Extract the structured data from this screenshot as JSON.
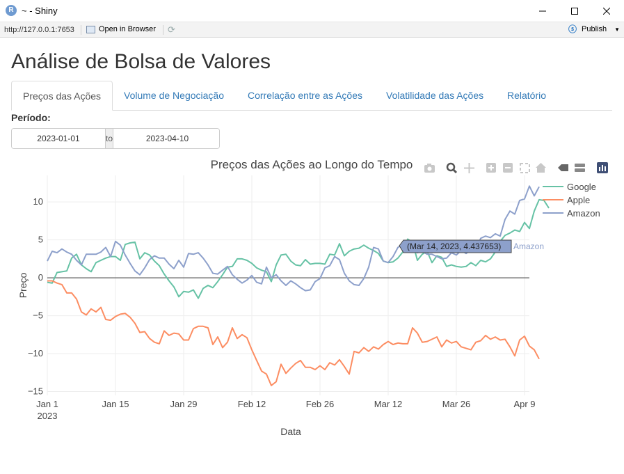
{
  "window": {
    "title": "~ - Shiny",
    "icon_letter": "R",
    "url": "http://127.0.0.1:7653",
    "open_in_browser": "Open in Browser",
    "publish": "Publish"
  },
  "page": {
    "title": "Análise de Bolsa de Valores"
  },
  "tabs": [
    {
      "label": "Preços das Ações",
      "active": true
    },
    {
      "label": "Volume de Negociação",
      "active": false
    },
    {
      "label": "Correlação entre as Ações",
      "active": false
    },
    {
      "label": "Volatilidade das Ações",
      "active": false
    },
    {
      "label": "Relatório",
      "active": false
    }
  ],
  "filter": {
    "label": "Período:",
    "start": "2023-01-01",
    "separator": "to",
    "end": "2023-04-10"
  },
  "tooltip": {
    "text": "(Mar 14, 2023, 4.437653)",
    "series": "Amazon"
  },
  "modebar_icons": [
    "camera-icon",
    "zoom-icon",
    "pan-icon",
    "zoom-in-icon",
    "zoom-out-icon",
    "autoscale-icon",
    "reset-axes-icon",
    "spike-lines-icon",
    "compare-data-icon",
    "plotly-logo-icon"
  ],
  "chart_data": {
    "type": "line",
    "title": "Preços das Ações ao Longo do Tempo",
    "xlabel": "Data",
    "ylabel": "Preço",
    "x_start": "2023-01-01",
    "x_end": "2023-04-10",
    "x_ticks": [
      "Jan 1",
      "Jan 15",
      "Jan 29",
      "Feb 12",
      "Feb 26",
      "Mar 12",
      "Mar 26",
      "Apr 9"
    ],
    "x_tick_sub": "2023",
    "y_ticks": [
      "−15",
      "−10",
      "−5",
      "0",
      "5",
      "10"
    ],
    "ylim": [
      -15.5,
      13.5
    ],
    "grid": true,
    "legend_position": "top-right",
    "series": [
      {
        "name": "Google",
        "color": "#66c2a5",
        "values": [
          -0.6,
          -0.7,
          0.7,
          0.8,
          0.9,
          2.6,
          3.1,
          1.7,
          1.2,
          0.8,
          2.0,
          2.3,
          2.6,
          2.8,
          2.8,
          2.3,
          4.4,
          4.6,
          4.7,
          2.5,
          3.3,
          3.0,
          2.2,
          1.6,
          0.5,
          -0.4,
          -1.2,
          -2.5,
          -1.8,
          -1.9,
          -1.6,
          -2.7,
          -1.4,
          -1.0,
          -1.3,
          -0.5,
          0.4,
          1.4,
          1.5,
          2.5,
          2.5,
          2.3,
          1.9,
          1.3,
          1.0,
          0.8,
          -0.5,
          1.7,
          3.0,
          3.1,
          2.2,
          1.7,
          1.6,
          2.4,
          1.8,
          1.9,
          1.9,
          1.8,
          3.1,
          3.0,
          4.5,
          2.9,
          3.5,
          3.8,
          3.9,
          4.3,
          3.9,
          3.6,
          3.2,
          2.2,
          2.0,
          2.1,
          2.6,
          3.4,
          5.1,
          4.7,
          2.3,
          3.1,
          3.5,
          2.0,
          2.9,
          2.7,
          1.5,
          1.7,
          1.5,
          1.4,
          1.5,
          2.0,
          1.6,
          2.3,
          2.1,
          2.5,
          3.4,
          4.8,
          5.6,
          5.9,
          6.3,
          6.1,
          7.3,
          6.5,
          8.8,
          10.3,
          10.2,
          9.2
        ]
      },
      {
        "name": "Apple",
        "color": "#fc8d62",
        "values": [
          -0.4,
          -0.4,
          -0.7,
          -0.9,
          -2.0,
          -2.0,
          -2.8,
          -4.5,
          -4.9,
          -4.1,
          -4.5,
          -3.9,
          -5.5,
          -5.6,
          -5.1,
          -4.8,
          -4.7,
          -5.2,
          -6.0,
          -7.2,
          -7.1,
          -8.0,
          -8.5,
          -8.7,
          -7.0,
          -7.6,
          -7.3,
          -7.4,
          -8.2,
          -8.2,
          -6.7,
          -6.4,
          -6.4,
          -6.6,
          -8.8,
          -7.8,
          -9.2,
          -8.5,
          -6.6,
          -8.0,
          -7.5,
          -7.9,
          -9.5,
          -10.9,
          -12.3,
          -12.7,
          -14.2,
          -13.7,
          -11.4,
          -12.6,
          -11.9,
          -11.3,
          -10.9,
          -11.8,
          -11.8,
          -12.1,
          -11.6,
          -12.1,
          -11.2,
          -11.5,
          -10.8,
          -11.7,
          -12.7,
          -9.7,
          -9.9,
          -9.2,
          -9.7,
          -9.1,
          -9.4,
          -8.8,
          -8.4,
          -8.8,
          -8.6,
          -8.7,
          -8.7,
          -6.6,
          -7.3,
          -8.5,
          -8.4,
          -8.1,
          -7.8,
          -9.1,
          -8.2,
          -8.6,
          -8.4,
          -9.1,
          -9.3,
          -9.5,
          -8.5,
          -8.3,
          -7.6,
          -8.1,
          -7.8,
          -8.2,
          -8.1,
          -9.1,
          -10.3,
          -8.2,
          -7.7,
          -9.0,
          -9.5,
          -10.7
        ]
      },
      {
        "name": "Amazon",
        "color": "#8da0cb",
        "values": [
          2.2,
          3.5,
          3.3,
          3.8,
          3.4,
          3.1,
          2.3,
          1.7,
          3.1,
          3.1,
          3.1,
          3.4,
          4.0,
          2.8,
          4.8,
          4.3,
          3.0,
          1.9,
          0.9,
          0.4,
          1.3,
          2.4,
          2.9,
          2.6,
          2.6,
          1.8,
          1.2,
          2.3,
          1.4,
          3.2,
          3.1,
          3.3,
          2.6,
          1.7,
          0.6,
          0.5,
          1.0,
          1.5,
          0.4,
          -0.2,
          -0.7,
          -0.3,
          0.3,
          -0.6,
          -0.8,
          1.4,
          0.0,
          0.4,
          -0.4,
          -1.0,
          -0.4,
          -0.8,
          -1.3,
          -1.7,
          -1.6,
          -0.5,
          -0.1,
          1.3,
          1.6,
          2.8,
          2.4,
          0.6,
          -0.4,
          -0.9,
          -1.0,
          -0.1,
          1.4,
          4.0,
          3.8,
          2.2,
          2.0,
          2.8,
          4.0,
          4.4,
          4.0,
          3.7,
          3.3,
          3.5,
          3.1,
          3.1,
          2.8,
          2.5,
          2.6,
          3.3,
          3.0,
          3.6,
          3.2,
          3.7,
          3.6,
          5.2,
          5.5,
          5.3,
          5.8,
          5.5,
          7.7,
          8.8,
          8.4,
          10.2,
          10.4,
          12.1,
          10.8,
          12.0
        ]
      }
    ]
  }
}
